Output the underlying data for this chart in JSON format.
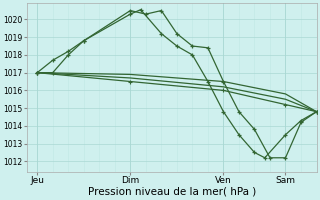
{
  "background_color": "#cff0ee",
  "grid_major_color": "#aad8d4",
  "grid_minor_color": "#c0e8e4",
  "line_color": "#336633",
  "marker_color": "#336633",
  "ylabel_ticks": [
    1012,
    1013,
    1014,
    1015,
    1016,
    1017,
    1018,
    1019,
    1020
  ],
  "ylim": [
    1011.4,
    1020.9
  ],
  "x_tick_labels": [
    "Jeu",
    "Dim",
    "Ven",
    "Sam"
  ],
  "x_tick_positions": [
    0,
    36,
    72,
    96
  ],
  "xlim": [
    -4,
    108
  ],
  "xlabel": "Pression niveau de la mer( hPa )",
  "series1_x": [
    0,
    6,
    12,
    18,
    36,
    42,
    48,
    54,
    60,
    66,
    72,
    78,
    84,
    90,
    96,
    102,
    108
  ],
  "series1_y": [
    1017.0,
    1017.7,
    1018.2,
    1018.8,
    1020.5,
    1020.3,
    1020.5,
    1019.2,
    1018.5,
    1018.4,
    1016.5,
    1014.8,
    1013.8,
    1012.2,
    1012.2,
    1014.2,
    1014.8
  ],
  "series2_x": [
    0,
    6,
    12,
    18,
    36,
    40,
    48,
    54,
    60,
    66,
    72,
    78,
    84,
    88,
    96,
    102,
    108
  ],
  "series2_y": [
    1017.0,
    1017.0,
    1018.0,
    1018.8,
    1020.3,
    1020.55,
    1019.2,
    1018.5,
    1018.0,
    1016.5,
    1014.8,
    1013.5,
    1012.5,
    1012.2,
    1013.5,
    1014.3,
    1014.8
  ],
  "series3_x": [
    0,
    36,
    72,
    96,
    108
  ],
  "series3_y": [
    1017.0,
    1016.5,
    1016.0,
    1015.2,
    1014.8
  ],
  "series4_x": [
    0,
    36,
    72,
    96,
    108
  ],
  "series4_y": [
    1017.0,
    1016.7,
    1016.2,
    1015.5,
    1014.8
  ],
  "series5_x": [
    0,
    36,
    72,
    96,
    108
  ],
  "series5_y": [
    1017.0,
    1016.9,
    1016.5,
    1015.8,
    1014.8
  ]
}
